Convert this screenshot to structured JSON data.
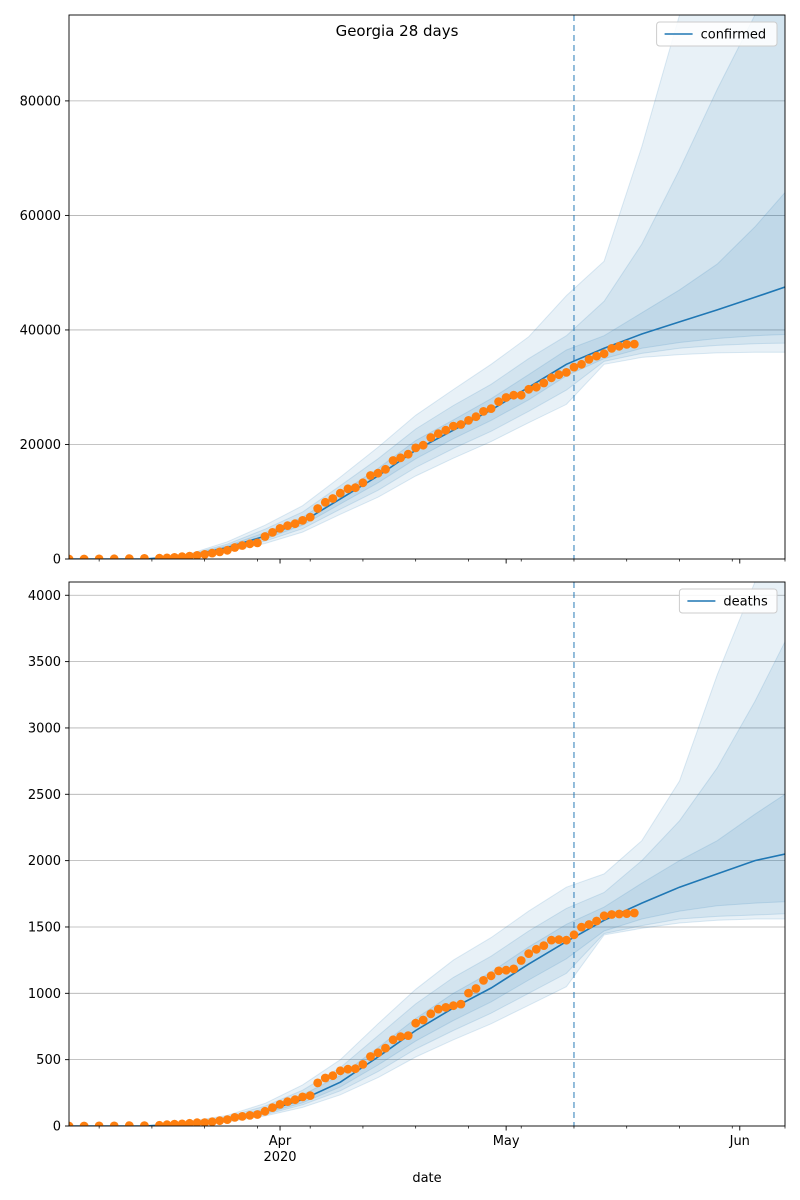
{
  "figure": {
    "title": "Georgia 28 days",
    "xlabel": "date",
    "x_ticks": [
      {
        "date": "2020-04-01",
        "label": "Apr",
        "sublabel": "2020"
      },
      {
        "date": "2020-05-01",
        "label": "May",
        "sublabel": ""
      },
      {
        "date": "2020-06-01",
        "label": "Jun",
        "sublabel": ""
      }
    ],
    "x_range": [
      "2020-03-04",
      "2020-06-07"
    ],
    "forecast_start": "2020-05-10",
    "colors": {
      "model_line": "#1f77b4",
      "band": "#1f77b4",
      "observed_points": "#ff7f0e",
      "forecast_line": "#1f77b4",
      "grid": "#b0b0b0"
    }
  },
  "chart_data": [
    {
      "type": "line",
      "legend": "confirmed",
      "legend_position": "top-right",
      "grid": "horizontal",
      "ylim": [
        0,
        95000
      ],
      "y_ticks": [
        0,
        20000,
        40000,
        60000,
        80000
      ],
      "median": {
        "x": [
          "2020-03-04",
          "2020-03-14",
          "2020-03-20",
          "2020-03-25",
          "2020-03-30",
          "2020-04-04",
          "2020-04-09",
          "2020-04-14",
          "2020-04-19",
          "2020-04-24",
          "2020-04-29",
          "2020-05-04",
          "2020-05-09",
          "2020-05-14",
          "2020-05-19",
          "2020-05-24",
          "2020-05-29",
          "2020-06-03",
          "2020-06-07"
        ],
        "y": [
          0,
          0,
          600,
          2000,
          4000,
          6500,
          10500,
          14500,
          19000,
          22500,
          26000,
          30000,
          34000,
          36800,
          39300,
          41400,
          43500,
          45700,
          47500
        ]
      },
      "bands": [
        {
          "level": "inner",
          "x": [
            "2020-03-20",
            "2020-03-25",
            "2020-03-30",
            "2020-04-04",
            "2020-04-09",
            "2020-04-14",
            "2020-04-19",
            "2020-04-24",
            "2020-04-29",
            "2020-05-04",
            "2020-05-09",
            "2020-05-14",
            "2020-05-19",
            "2020-05-24",
            "2020-05-29",
            "2020-06-03",
            "2020-06-07"
          ],
          "low": [
            500,
            1700,
            3500,
            5900,
            9600,
            13300,
            17500,
            21000,
            24200,
            27800,
            32000,
            35000,
            36800,
            37800,
            38500,
            39000,
            39200
          ],
          "high": [
            700,
            2300,
            4600,
            7300,
            11500,
            15800,
            20700,
            24300,
            28000,
            32200,
            36500,
            39000,
            43000,
            47000,
            51500,
            58000,
            64000
          ]
        },
        {
          "level": "middle",
          "x": [
            "2020-03-20",
            "2020-03-25",
            "2020-03-30",
            "2020-04-04",
            "2020-04-09",
            "2020-04-14",
            "2020-04-19",
            "2020-04-24",
            "2020-04-29",
            "2020-05-04",
            "2020-05-09",
            "2020-05-14",
            "2020-05-19",
            "2020-05-24",
            "2020-05-29",
            "2020-06-03",
            "2020-06-07"
          ],
          "low": [
            400,
            1500,
            3100,
            5300,
            8700,
            12000,
            16000,
            19300,
            22300,
            25800,
            29500,
            34500,
            35900,
            36800,
            37300,
            37600,
            37700
          ],
          "high": [
            800,
            2600,
            5200,
            8200,
            12800,
            17500,
            22700,
            26800,
            30500,
            35000,
            39000,
            45000,
            55000,
            68000,
            82000,
            95000,
            95000
          ]
        },
        {
          "level": "outer",
          "x": [
            "2020-03-20",
            "2020-03-25",
            "2020-03-30",
            "2020-04-04",
            "2020-04-09",
            "2020-04-14",
            "2020-04-19",
            "2020-04-24",
            "2020-04-29",
            "2020-05-04",
            "2020-05-09",
            "2020-05-14",
            "2020-05-19",
            "2020-05-24",
            "2020-05-29",
            "2020-06-03",
            "2020-06-07"
          ],
          "low": [
            300,
            1200,
            2700,
            4700,
            7800,
            10800,
            14500,
            17600,
            20500,
            23800,
            27000,
            34000,
            35200,
            35700,
            36000,
            36100,
            36100
          ],
          "high": [
            900,
            3000,
            5900,
            9300,
            14300,
            19500,
            25100,
            29600,
            34000,
            38800,
            46000,
            52000,
            72000,
            95000,
            95000,
            95000,
            95000
          ]
        }
      ],
      "observed": {
        "x": [
          "2020-03-04",
          "2020-03-06",
          "2020-03-08",
          "2020-03-10",
          "2020-03-12",
          "2020-03-14",
          "2020-03-16",
          "2020-03-17",
          "2020-03-18",
          "2020-03-19",
          "2020-03-20",
          "2020-03-21",
          "2020-03-22",
          "2020-03-23",
          "2020-03-24",
          "2020-03-25",
          "2020-03-26",
          "2020-03-27",
          "2020-03-28",
          "2020-03-29",
          "2020-03-30",
          "2020-03-31",
          "2020-04-01",
          "2020-04-02",
          "2020-04-03",
          "2020-04-04",
          "2020-04-05",
          "2020-04-06",
          "2020-04-07",
          "2020-04-08",
          "2020-04-09",
          "2020-04-10",
          "2020-04-11",
          "2020-04-12",
          "2020-04-13",
          "2020-04-14",
          "2020-04-15",
          "2020-04-16",
          "2020-04-17",
          "2020-04-18",
          "2020-04-19",
          "2020-04-20",
          "2020-04-21",
          "2020-04-22",
          "2020-04-23",
          "2020-04-24",
          "2020-04-25",
          "2020-04-26",
          "2020-04-27",
          "2020-04-28",
          "2020-04-29",
          "2020-04-30",
          "2020-05-01",
          "2020-05-02",
          "2020-05-03",
          "2020-05-04",
          "2020-05-05",
          "2020-05-06",
          "2020-05-07",
          "2020-05-08",
          "2020-05-09",
          "2020-05-10",
          "2020-05-11",
          "2020-05-12",
          "2020-05-13",
          "2020-05-14",
          "2020-05-15",
          "2020-05-16",
          "2020-05-17",
          "2020-05-18"
        ],
        "y": [
          2,
          5,
          17,
          31,
          66,
          99,
          146,
          197,
          287,
          420,
          507,
          620,
          800,
          1026,
          1247,
          1525,
          2000,
          2366,
          2651,
          2809,
          3929,
          4638,
          5348,
          5831,
          6160,
          6742,
          7314,
          8818,
          9901,
          10566,
          11483,
          12261,
          12452,
          13315,
          14578,
          14987,
          15669,
          17194,
          17669,
          18301,
          19407,
          19881,
          21214,
          21883,
          22491,
          23216,
          23481,
          24200,
          24854,
          25775,
          26264,
          27489,
          28196,
          28602,
          28602,
          29640,
          29998,
          30743,
          31642,
          32181,
          32588,
          33508,
          34002,
          34848,
          35427,
          35858,
          36772,
          37147,
          37472,
          37521
        ]
      }
    },
    {
      "type": "line",
      "legend": "deaths",
      "legend_position": "top-right",
      "grid": "horizontal",
      "ylim": [
        0,
        4100
      ],
      "y_ticks": [
        0,
        500,
        1000,
        1500,
        2000,
        2500,
        3000,
        3500,
        4000
      ],
      "median": {
        "x": [
          "2020-03-04",
          "2020-03-14",
          "2020-03-20",
          "2020-03-25",
          "2020-03-30",
          "2020-04-04",
          "2020-04-09",
          "2020-04-14",
          "2020-04-19",
          "2020-04-24",
          "2020-04-29",
          "2020-05-04",
          "2020-05-09",
          "2020-05-14",
          "2020-05-19",
          "2020-05-24",
          "2020-05-29",
          "2020-06-03",
          "2020-06-07"
        ],
        "y": [
          0,
          0,
          20,
          50,
          110,
          200,
          330,
          520,
          720,
          890,
          1040,
          1220,
          1390,
          1550,
          1680,
          1800,
          1900,
          2000,
          2050
        ]
      },
      "bands": [
        {
          "level": "inner",
          "x": [
            "2020-03-20",
            "2020-03-25",
            "2020-03-30",
            "2020-04-04",
            "2020-04-09",
            "2020-04-14",
            "2020-04-19",
            "2020-04-24",
            "2020-04-29",
            "2020-05-04",
            "2020-05-09",
            "2020-05-14",
            "2020-05-19",
            "2020-05-24",
            "2020-05-29",
            "2020-06-03",
            "2020-06-07"
          ],
          "low": [
            15,
            42,
            95,
            175,
            295,
            460,
            640,
            795,
            935,
            1100,
            1260,
            1470,
            1560,
            1620,
            1660,
            1680,
            1690
          ],
          "high": [
            25,
            60,
            130,
            235,
            380,
            590,
            810,
            1000,
            1160,
            1350,
            1520,
            1650,
            1830,
            2000,
            2150,
            2350,
            2500
          ]
        },
        {
          "level": "middle",
          "x": [
            "2020-03-20",
            "2020-03-25",
            "2020-03-30",
            "2020-04-04",
            "2020-04-09",
            "2020-04-14",
            "2020-04-19",
            "2020-04-24",
            "2020-04-29",
            "2020-05-04",
            "2020-05-09",
            "2020-05-14",
            "2020-05-19",
            "2020-05-24",
            "2020-05-29",
            "2020-06-03",
            "2020-06-07"
          ],
          "low": [
            12,
            36,
            85,
            160,
            265,
            410,
            580,
            720,
            850,
            1000,
            1150,
            1450,
            1510,
            1560,
            1580,
            1590,
            1600
          ],
          "high": [
            30,
            70,
            150,
            270,
            440,
            680,
            920,
            1120,
            1280,
            1470,
            1640,
            1760,
            2000,
            2300,
            2700,
            3200,
            3650
          ]
        },
        {
          "level": "outer",
          "x": [
            "2020-03-20",
            "2020-03-25",
            "2020-03-30",
            "2020-04-04",
            "2020-04-09",
            "2020-04-14",
            "2020-04-19",
            "2020-04-24",
            "2020-04-29",
            "2020-05-04",
            "2020-05-09",
            "2020-05-14",
            "2020-05-19",
            "2020-05-24",
            "2020-05-29",
            "2020-06-03",
            "2020-06-07"
          ],
          "low": [
            10,
            30,
            75,
            140,
            235,
            365,
            520,
            650,
            770,
            910,
            1050,
            1440,
            1490,
            1530,
            1550,
            1560,
            1560
          ],
          "high": [
            35,
            80,
            170,
            310,
            500,
            770,
            1030,
            1250,
            1420,
            1620,
            1800,
            1900,
            2150,
            2600,
            3400,
            4100,
            4100
          ]
        }
      ],
      "observed": {
        "x": [
          "2020-03-04",
          "2020-03-06",
          "2020-03-08",
          "2020-03-10",
          "2020-03-12",
          "2020-03-14",
          "2020-03-16",
          "2020-03-17",
          "2020-03-18",
          "2020-03-19",
          "2020-03-20",
          "2020-03-21",
          "2020-03-22",
          "2020-03-23",
          "2020-03-24",
          "2020-03-25",
          "2020-03-26",
          "2020-03-27",
          "2020-03-28",
          "2020-03-29",
          "2020-03-30",
          "2020-03-31",
          "2020-04-01",
          "2020-04-02",
          "2020-04-03",
          "2020-04-04",
          "2020-04-05",
          "2020-04-06",
          "2020-04-07",
          "2020-04-08",
          "2020-04-09",
          "2020-04-10",
          "2020-04-11",
          "2020-04-12",
          "2020-04-13",
          "2020-04-14",
          "2020-04-15",
          "2020-04-16",
          "2020-04-17",
          "2020-04-18",
          "2020-04-19",
          "2020-04-20",
          "2020-04-21",
          "2020-04-22",
          "2020-04-23",
          "2020-04-24",
          "2020-04-25",
          "2020-04-26",
          "2020-04-27",
          "2020-04-28",
          "2020-04-29",
          "2020-04-30",
          "2020-05-01",
          "2020-05-02",
          "2020-05-03",
          "2020-05-04",
          "2020-05-05",
          "2020-05-06",
          "2020-05-07",
          "2020-05-08",
          "2020-05-09",
          "2020-05-10",
          "2020-05-11",
          "2020-05-12",
          "2020-05-13",
          "2020-05-14",
          "2020-05-15",
          "2020-05-16",
          "2020-05-17",
          "2020-05-18"
        ],
        "y": [
          0,
          0,
          1,
          1,
          3,
          3,
          5,
          10,
          14,
          16,
          20,
          25,
          26,
          32,
          40,
          48,
          65,
          72,
          80,
          87,
          111,
          139,
          163,
          184,
          198,
          219,
          229,
          325,
          362,
          379,
          416,
          428,
          432,
          464,
          524,
          552,
          587,
          650,
          673,
          681,
          775,
          799,
          846,
          881,
          894,
          907,
          919,
          1002,
          1036,
          1097,
          1132,
          1169,
          1174,
          1184,
          1247,
          1299,
          1332,
          1360,
          1401,
          1405,
          1400,
          1441,
          1499,
          1519,
          1545,
          1584,
          1594,
          1598,
          1601,
          1605
        ]
      }
    }
  ]
}
